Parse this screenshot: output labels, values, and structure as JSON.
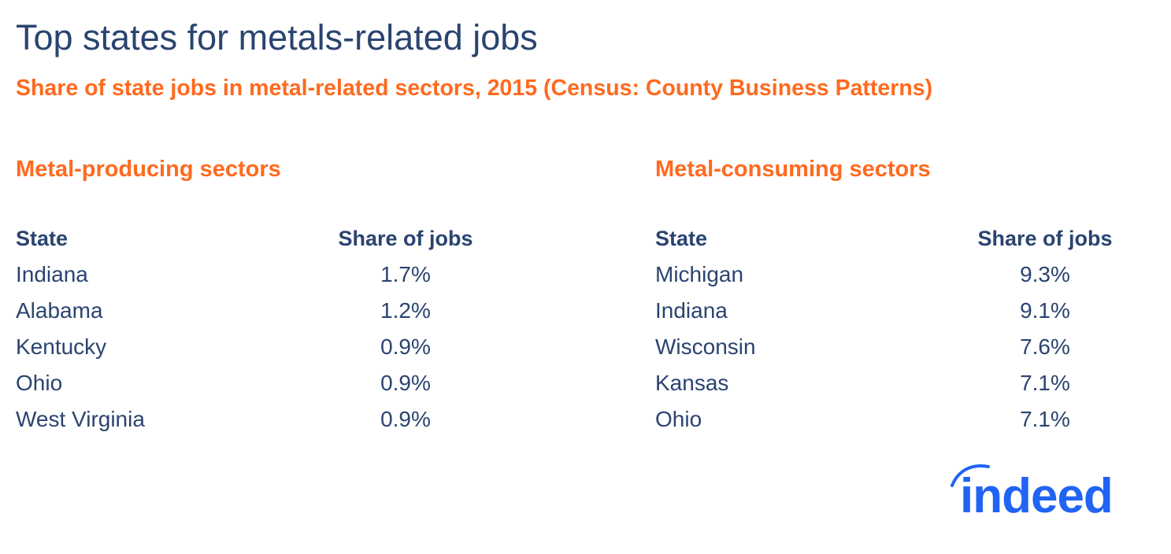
{
  "title": "Top states for metals-related jobs",
  "subtitle": "Share of state jobs in metal-related sectors, 2015 (Census: County Business Patterns)",
  "colors": {
    "title": "#2a4470",
    "accent": "#ff6a1f",
    "logo": "#2164f3"
  },
  "logo_text": "indeed",
  "chart_data": [
    {
      "type": "table",
      "title": "Metal-producing sectors",
      "columns": [
        "State",
        "Share of jobs"
      ],
      "rows": [
        [
          "Indiana",
          "1.7%"
        ],
        [
          "Alabama",
          "1.2%"
        ],
        [
          "Kentucky",
          "0.9%"
        ],
        [
          "Ohio",
          "0.9%"
        ],
        [
          "West Virginia",
          "0.9%"
        ]
      ]
    },
    {
      "type": "table",
      "title": "Metal-consuming sectors",
      "columns": [
        "State",
        "Share of jobs"
      ],
      "rows": [
        [
          "Michigan",
          "9.3%"
        ],
        [
          "Indiana",
          "9.1%"
        ],
        [
          "Wisconsin",
          "7.6%"
        ],
        [
          "Kansas",
          "7.1%"
        ],
        [
          "Ohio",
          "7.1%"
        ]
      ]
    }
  ]
}
